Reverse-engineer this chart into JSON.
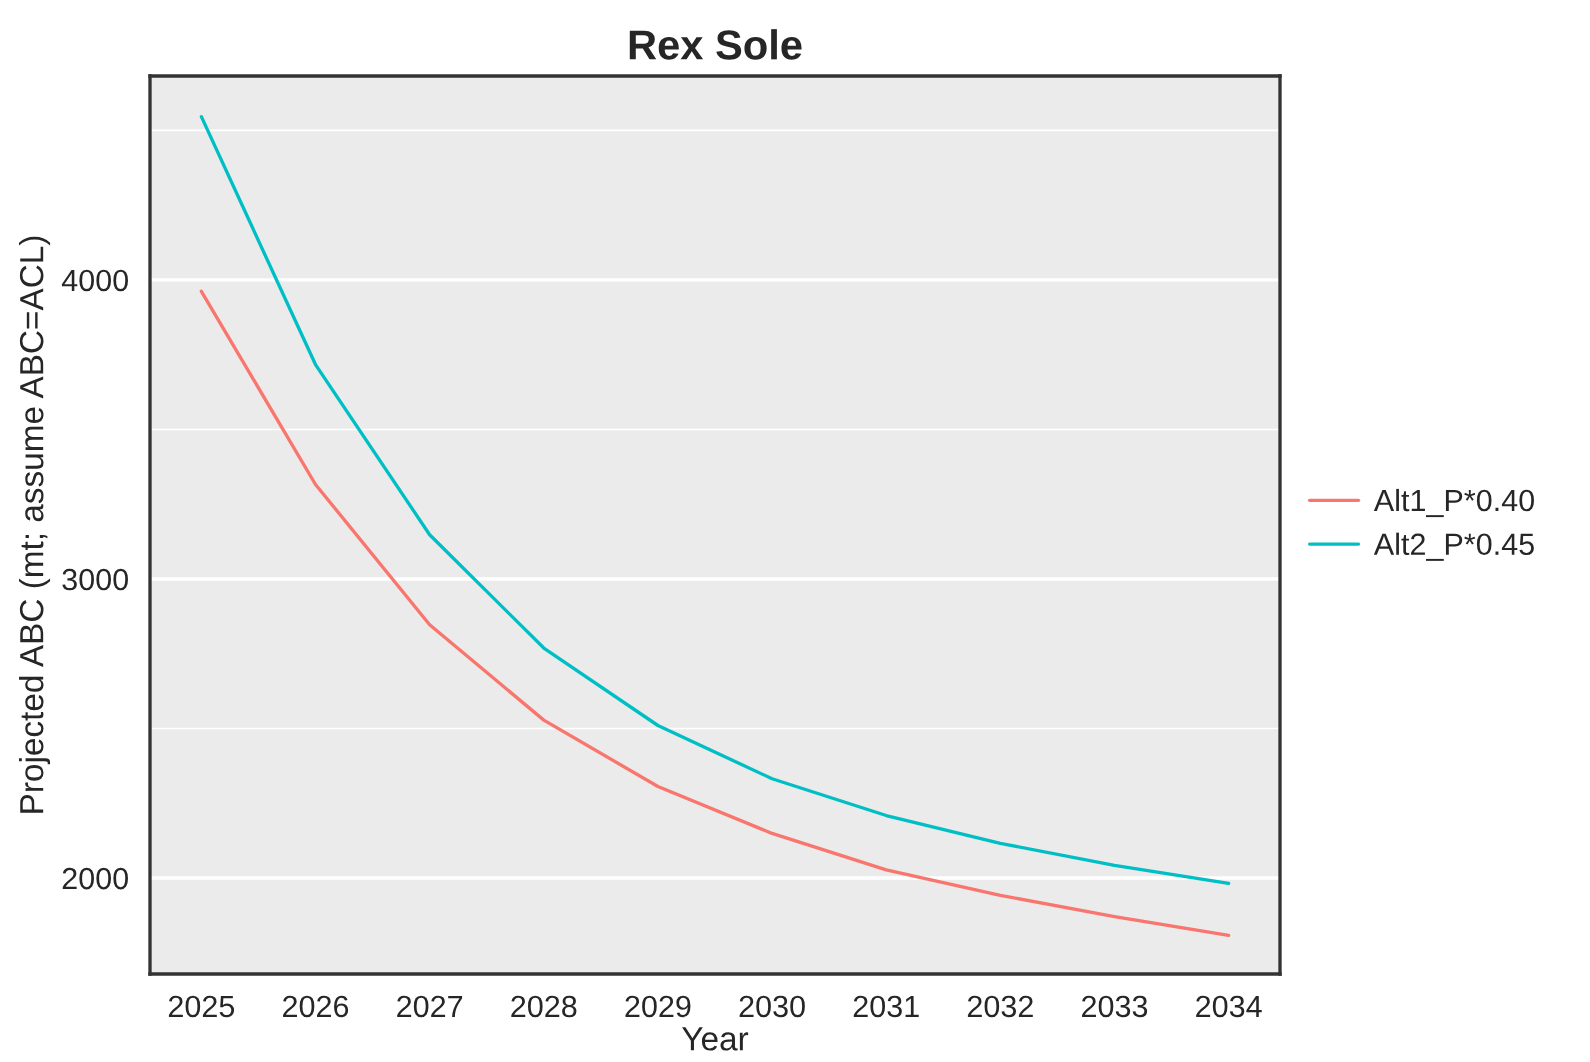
{
  "chart_data": {
    "type": "line",
    "title": "Rex Sole",
    "xlabel": "Year",
    "ylabel": "Projected ABC (mt; assume ABC=ACL)",
    "x": [
      2025,
      2026,
      2027,
      2028,
      2029,
      2030,
      2031,
      2032,
      2033,
      2034
    ],
    "series": [
      {
        "name": "Alt1_P*0.40",
        "color": "#f8766d",
        "values": [
          3962,
          3316,
          2847,
          2528,
          2306,
          2149,
          2027,
          1942,
          1871,
          1808
        ]
      },
      {
        "name": "Alt2_P*0.45",
        "color": "#00bfc4",
        "values": [
          4546,
          3717,
          3148,
          2769,
          2510,
          2332,
          2209,
          2116,
          2042,
          1982
        ]
      }
    ],
    "xlim": [
      2024.55,
      2034.45
    ],
    "xticks": [
      2025,
      2026,
      2027,
      2028,
      2029,
      2030,
      2031,
      2032,
      2033,
      2034
    ],
    "ylim": [
      1679,
      4682
    ],
    "yticks": [
      {
        "value": 2000,
        "label": "2000"
      },
      {
        "value": 2500,
        "label": null
      },
      {
        "value": 3000,
        "label": "3000"
      },
      {
        "value": 3500,
        "label": null
      },
      {
        "value": 4000,
        "label": "4000"
      },
      {
        "value": 4500,
        "label": null
      }
    ],
    "grid": "y",
    "legend": "right",
    "marker": "none",
    "line_style": "solid"
  }
}
